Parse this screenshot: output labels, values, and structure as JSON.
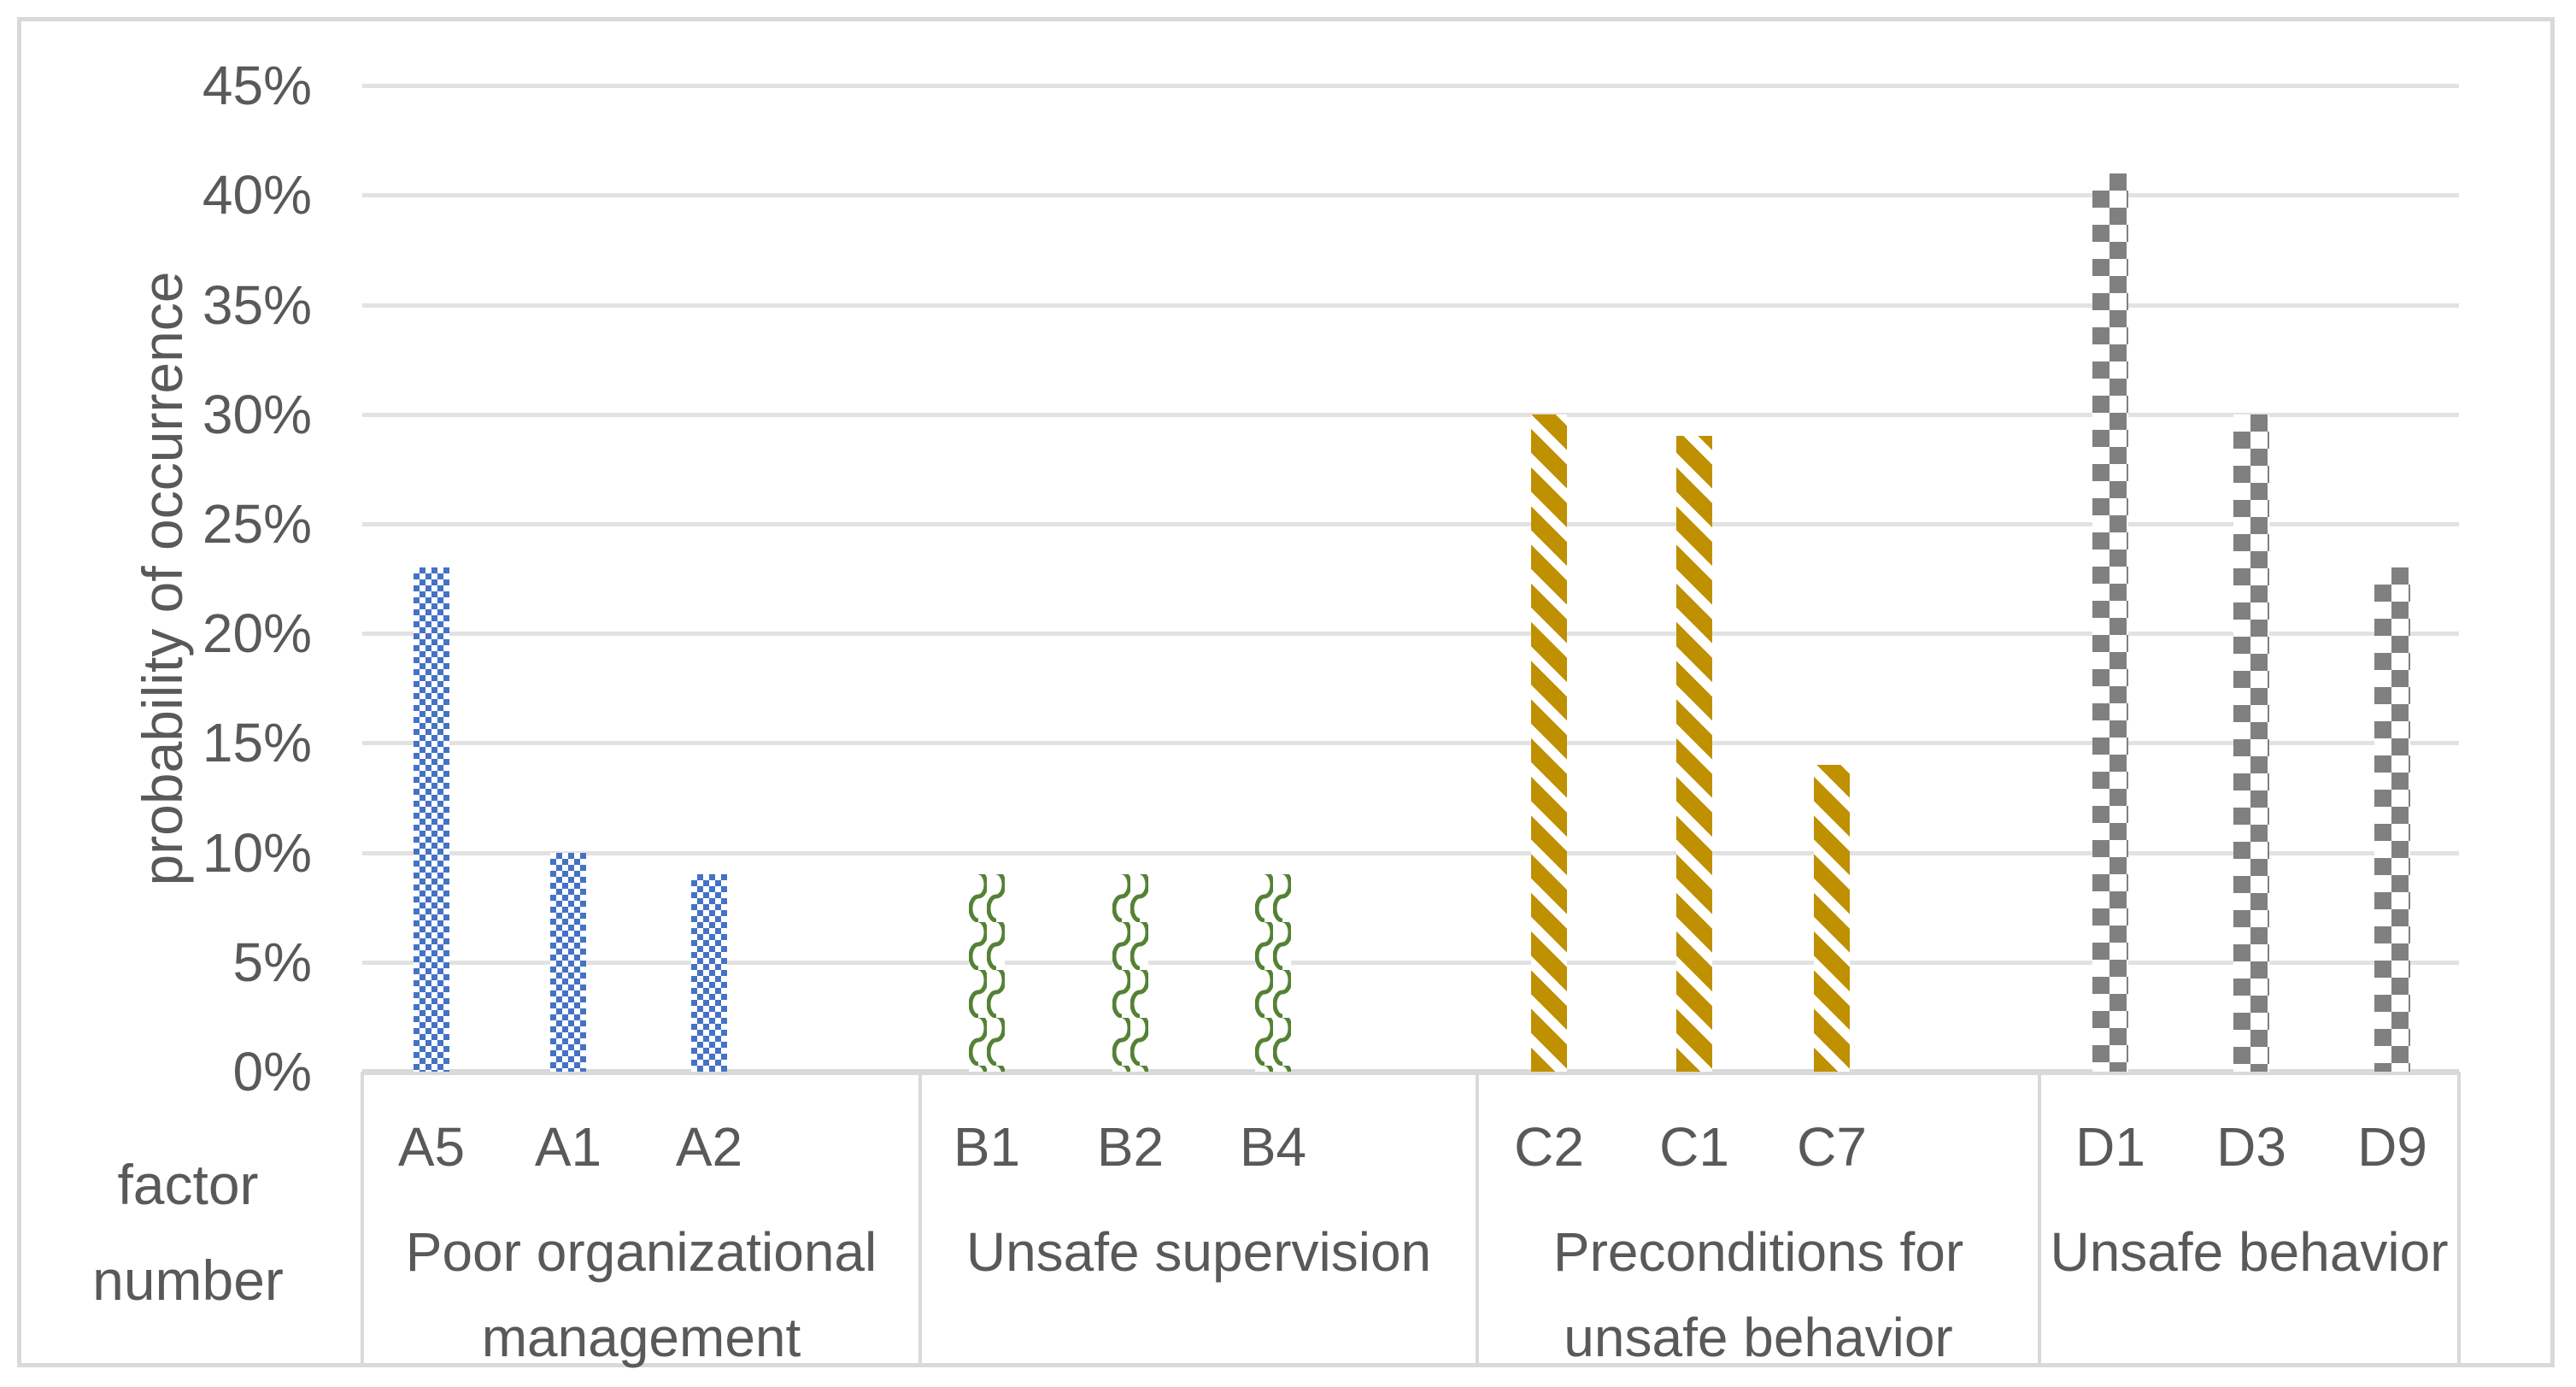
{
  "chart_data": {
    "type": "bar",
    "title": "",
    "ylabel": "probability of occurrence",
    "xlabel": "factor number",
    "ylim_pct": [
      0,
      45
    ],
    "ytick_step_pct": 5,
    "yticks": [
      "0%",
      "5%",
      "10%",
      "15%",
      "20%",
      "25%",
      "30%",
      "35%",
      "40%",
      "45%"
    ],
    "grid": true,
    "legend": "none",
    "categories_axis": "multi-level-grouped",
    "groups": [
      {
        "category": "Poor organizational management",
        "factors": [
          "A5",
          "A1",
          "A2"
        ],
        "values_pct": [
          23,
          10,
          9
        ],
        "color": "#4472C4",
        "pattern": "small-checker"
      },
      {
        "category": "Unsafe supervision",
        "factors": [
          "B1",
          "B2",
          "B4"
        ],
        "values_pct": [
          9,
          9,
          9
        ],
        "color": "#548235",
        "pattern": "wave"
      },
      {
        "category": "Preconditions for unsafe behavior",
        "factors": [
          "C2",
          "C1",
          "C7"
        ],
        "values_pct": [
          30,
          29,
          14
        ],
        "color": "#BF9000",
        "pattern": "diagonal-stripes"
      },
      {
        "category": "Unsafe behavior",
        "factors": [
          "D1",
          "D3",
          "D9"
        ],
        "values_pct": [
          41,
          30,
          23
        ],
        "color": "#808080",
        "pattern": "large-checker"
      }
    ],
    "colors": {
      "text": "#595959",
      "gridline": "#E2E2E2",
      "axis_line": "#D9D9D9",
      "frame_border": "#D9D9D9",
      "background": "#FFFFFF"
    }
  }
}
